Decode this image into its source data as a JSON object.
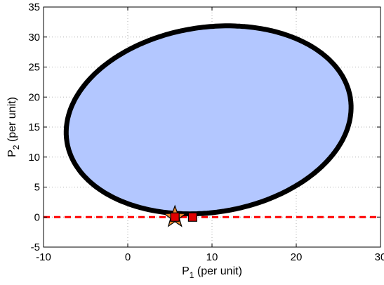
{
  "chart_data": {
    "type": "scatter",
    "xlabel": {
      "main": "P",
      "subscript": "1",
      "unit": " (per unit)"
    },
    "ylabel": {
      "main": "P",
      "subscript": "2",
      "unit": " (per unit)"
    },
    "xlim": [
      -10,
      30
    ],
    "ylim": [
      -5,
      35
    ],
    "xticks": [
      -10,
      0,
      10,
      20,
      30
    ],
    "yticks": [
      -5,
      0,
      5,
      10,
      15,
      20,
      25,
      30,
      35
    ],
    "grid": true,
    "legend": "none",
    "region": {
      "kind": "ellipse",
      "center": [
        9.6,
        16.2
      ],
      "semi_major": 17.5,
      "semi_minor": 15.0,
      "rotation_deg": 30,
      "fill": "#b3c7ff",
      "edge": "#000000"
    },
    "reference_line": {
      "y": 0,
      "color": "#ff0000",
      "style": "dashed"
    },
    "markers": [
      {
        "shape": "star",
        "x": 5.6,
        "y": 0,
        "fill": "#e8862e",
        "edge": "#000000"
      },
      {
        "shape": "square",
        "x": 5.6,
        "y": 0,
        "fill": "#e00000",
        "edge": "#000000"
      },
      {
        "shape": "square",
        "x": 7.7,
        "y": 0,
        "fill": "#e00000",
        "edge": "#000000"
      }
    ]
  }
}
